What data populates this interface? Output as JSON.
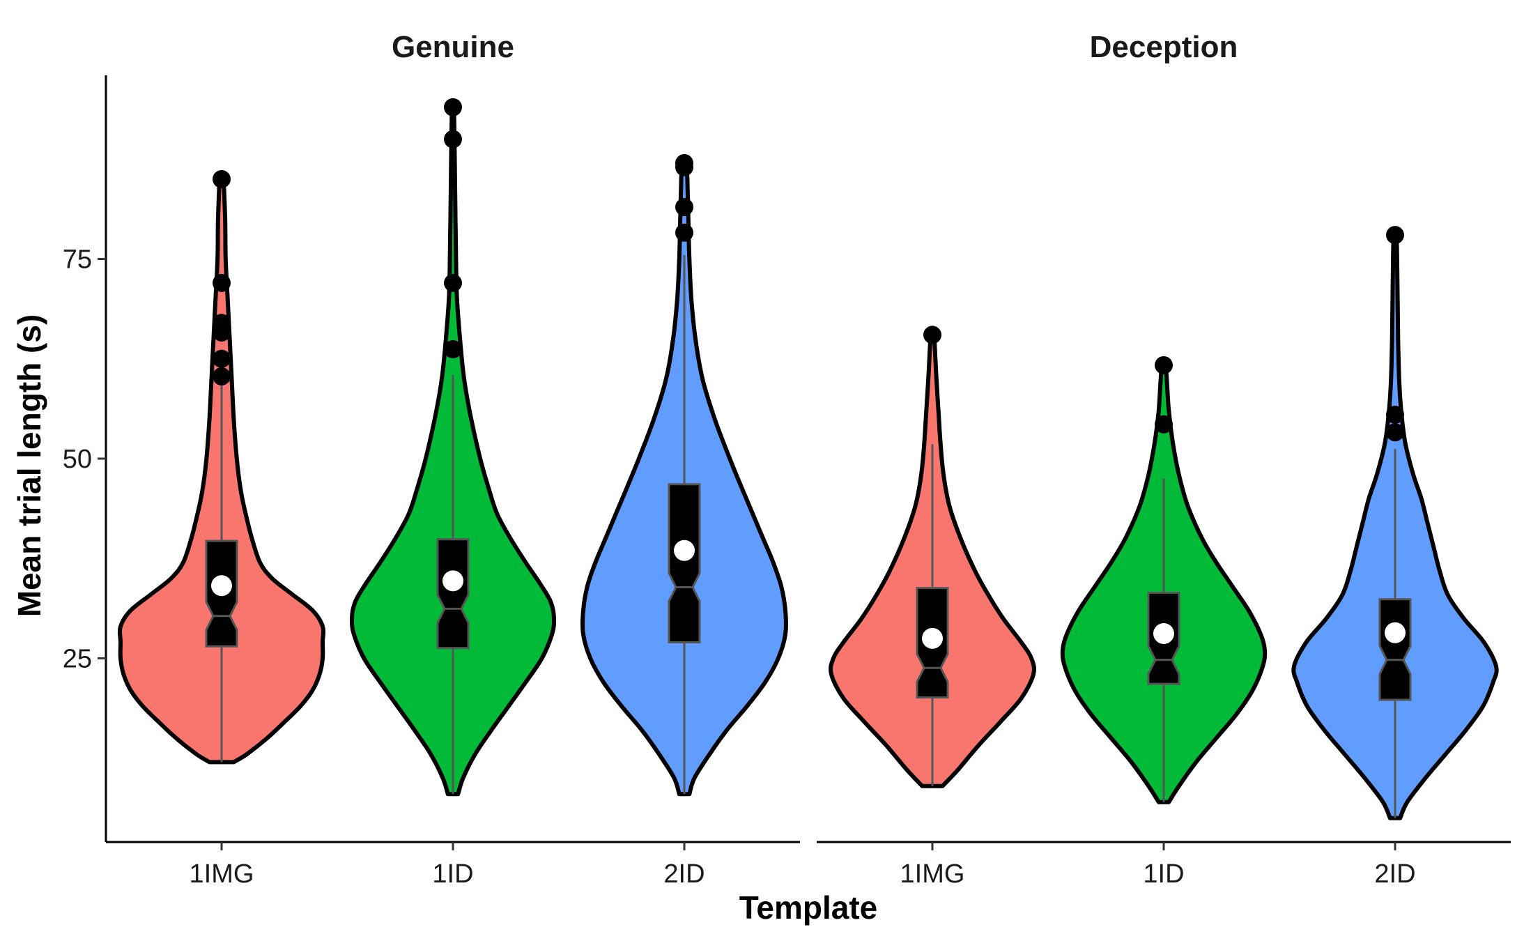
{
  "chart_data": {
    "type": "violin",
    "xlabel": "Template",
    "ylabel": "Mean trial length (s)",
    "yticks": [
      25,
      50,
      75
    ],
    "ylim": [
      2,
      98
    ],
    "categories": [
      "1IMG",
      "1ID",
      "2ID"
    ],
    "colors": {
      "1IMG": "#F8766D",
      "1ID": "#00BA38",
      "2ID": "#619CFF"
    },
    "grid": false,
    "legend": "none",
    "panels": [
      {
        "title": "Genuine",
        "groups": [
          {
            "category": "1IMG",
            "min": 12,
            "max": 85,
            "q1": 26.5,
            "median": 30.3,
            "q3": 39.7,
            "mean": 34.1,
            "whisker_low": 12,
            "whisker_high": 59.5,
            "outliers": [
              60.3,
              62.5,
              65.8,
              67,
              72,
              85
            ],
            "density": [
              [
                12,
                0.12
              ],
              [
                13,
                0.25
              ],
              [
                15,
                0.45
              ],
              [
                17,
                0.62
              ],
              [
                19,
                0.78
              ],
              [
                21,
                0.9
              ],
              [
                23,
                0.97
              ],
              [
                25,
                1.0
              ],
              [
                27,
                1.0
              ],
              [
                29,
                1.0
              ],
              [
                31,
                0.9
              ],
              [
                33,
                0.7
              ],
              [
                35,
                0.5
              ],
              [
                37,
                0.38
              ],
              [
                40,
                0.3
              ],
              [
                43,
                0.24
              ],
              [
                46,
                0.19
              ],
              [
                50,
                0.15
              ],
              [
                55,
                0.12
              ],
              [
                60,
                0.1
              ],
              [
                65,
                0.08
              ],
              [
                70,
                0.06
              ],
              [
                75,
                0.04
              ],
              [
                80,
                0.035
              ],
              [
                85,
                0.02
              ]
            ]
          },
          {
            "category": "1ID",
            "min": 8,
            "max": 94,
            "q1": 26.3,
            "median": 31.2,
            "q3": 39.9,
            "mean": 34.7,
            "whisker_low": 8,
            "whisker_high": 60.5,
            "outliers": [
              63.7,
              72,
              90,
              94
            ],
            "density": [
              [
                8,
                0.05
              ],
              [
                10,
                0.1
              ],
              [
                13,
                0.22
              ],
              [
                16,
                0.38
              ],
              [
                19,
                0.55
              ],
              [
                22,
                0.72
              ],
              [
                25,
                0.88
              ],
              [
                28,
                0.98
              ],
              [
                30,
                1.0
              ],
              [
                32,
                0.97
              ],
              [
                34,
                0.88
              ],
              [
                37,
                0.72
              ],
              [
                40,
                0.57
              ],
              [
                43,
                0.44
              ],
              [
                46,
                0.36
              ],
              [
                50,
                0.27
              ],
              [
                55,
                0.18
              ],
              [
                60,
                0.11
              ],
              [
                65,
                0.07
              ],
              [
                70,
                0.04
              ],
              [
                75,
                0.03
              ],
              [
                80,
                0.025
              ],
              [
                85,
                0.02
              ],
              [
                90,
                0.015
              ],
              [
                94,
                0.01
              ]
            ]
          },
          {
            "category": "2ID",
            "min": 8,
            "max": 87,
            "q1": 27,
            "median": 33.9,
            "q3": 46.8,
            "mean": 38.5,
            "whisker_low": 8,
            "whisker_high": 75.5,
            "outliers": [
              78.3,
              81.5,
              86.5,
              87
            ],
            "density": [
              [
                8,
                0.05
              ],
              [
                10,
                0.1
              ],
              [
                13,
                0.25
              ],
              [
                16,
                0.42
              ],
              [
                19,
                0.62
              ],
              [
                22,
                0.8
              ],
              [
                25,
                0.93
              ],
              [
                28,
                1.0
              ],
              [
                31,
                1.0
              ],
              [
                34,
                0.96
              ],
              [
                37,
                0.88
              ],
              [
                40,
                0.78
              ],
              [
                43,
                0.68
              ],
              [
                46,
                0.58
              ],
              [
                50,
                0.45
              ],
              [
                55,
                0.3
              ],
              [
                60,
                0.18
              ],
              [
                65,
                0.11
              ],
              [
                70,
                0.07
              ],
              [
                75,
                0.05
              ],
              [
                80,
                0.04
              ],
              [
                85,
                0.03
              ],
              [
                87,
                0.02
              ]
            ]
          }
        ]
      },
      {
        "title": "Deception",
        "groups": [
          {
            "category": "1IMG",
            "min": 9,
            "max": 65.5,
            "q1": 20.1,
            "median": 23.8,
            "q3": 33.8,
            "mean": 27.5,
            "whisker_low": 9,
            "whisker_high": 51.8,
            "outliers": [
              65.5
            ],
            "density": [
              [
                9,
                0.1
              ],
              [
                11,
                0.25
              ],
              [
                14,
                0.45
              ],
              [
                17,
                0.67
              ],
              [
                20,
                0.88
              ],
              [
                23,
                1.0
              ],
              [
                25,
                0.98
              ],
              [
                27,
                0.88
              ],
              [
                30,
                0.7
              ],
              [
                33,
                0.55
              ],
              [
                36,
                0.42
              ],
              [
                40,
                0.28
              ],
              [
                44,
                0.17
              ],
              [
                48,
                0.11
              ],
              [
                52,
                0.08
              ],
              [
                56,
                0.06
              ],
              [
                60,
                0.04
              ],
              [
                65,
                0.02
              ]
            ]
          },
          {
            "category": "1ID",
            "min": 7,
            "max": 61.7,
            "q1": 21.8,
            "median": 24.8,
            "q3": 33.2,
            "mean": 28.1,
            "whisker_low": 7,
            "whisker_high": 47.5,
            "outliers": [
              54.3,
              61.7
            ],
            "density": [
              [
                7,
                0.05
              ],
              [
                9,
                0.15
              ],
              [
                12,
                0.32
              ],
              [
                15,
                0.52
              ],
              [
                18,
                0.72
              ],
              [
                21,
                0.88
              ],
              [
                24,
                0.98
              ],
              [
                26,
                1.0
              ],
              [
                28,
                0.96
              ],
              [
                31,
                0.84
              ],
              [
                34,
                0.68
              ],
              [
                37,
                0.52
              ],
              [
                40,
                0.38
              ],
              [
                44,
                0.24
              ],
              [
                48,
                0.15
              ],
              [
                52,
                0.09
              ],
              [
                56,
                0.05
              ],
              [
                60,
                0.03
              ],
              [
                61.7,
                0.02
              ]
            ]
          },
          {
            "category": "2ID",
            "min": 5,
            "max": 78,
            "q1": 19.8,
            "median": 24.8,
            "q3": 32.4,
            "mean": 28.2,
            "whisker_low": 5,
            "whisker_high": 51.2,
            "outliers": [
              53.3,
              55.5,
              78
            ],
            "density": [
              [
                5,
                0.05
              ],
              [
                7,
                0.12
              ],
              [
                10,
                0.3
              ],
              [
                13,
                0.5
              ],
              [
                16,
                0.7
              ],
              [
                19,
                0.87
              ],
              [
                22,
                0.97
              ],
              [
                24,
                1.0
              ],
              [
                27,
                0.88
              ],
              [
                30,
                0.68
              ],
              [
                33,
                0.52
              ],
              [
                36,
                0.44
              ],
              [
                39,
                0.38
              ],
              [
                42,
                0.32
              ],
              [
                45,
                0.26
              ],
              [
                48,
                0.18
              ],
              [
                52,
                0.1
              ],
              [
                56,
                0.06
              ],
              [
                60,
                0.04
              ],
              [
                65,
                0.03
              ],
              [
                70,
                0.025
              ],
              [
                75,
                0.02
              ],
              [
                78,
                0.015
              ]
            ]
          }
        ]
      }
    ]
  }
}
